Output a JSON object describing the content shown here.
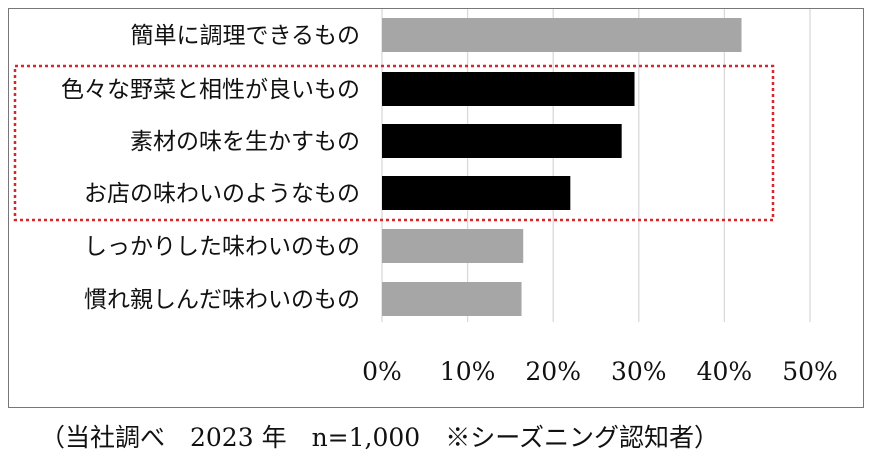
{
  "chart_data": {
    "type": "bar",
    "orientation": "horizontal",
    "categories": [
      "簡単に調理できるもの",
      "色々な野菜と相性が良いもの",
      "素材の味を生かすもの",
      "お店の味わいのようなもの",
      "しっかりした味わいのもの",
      "慣れ親しんだ味わいのもの"
    ],
    "values": [
      42,
      29.5,
      28,
      22,
      16.5,
      16.3
    ],
    "highlighted": [
      false,
      true,
      true,
      true,
      false,
      false
    ],
    "xlim": [
      0,
      50
    ],
    "xticks": [
      "0%",
      "10%",
      "20%",
      "30%",
      "40%",
      "50%"
    ],
    "grid": true,
    "title": "",
    "xlabel": "",
    "ylabel": "",
    "colors": {
      "default": "#a6a6a6",
      "highlight": "#000000",
      "grid": "#d9d9d9",
      "highlight_box": "#d9262d"
    }
  },
  "footnote": "（当社調べ　2023 年　n=1,000　※シーズニング認知者）"
}
